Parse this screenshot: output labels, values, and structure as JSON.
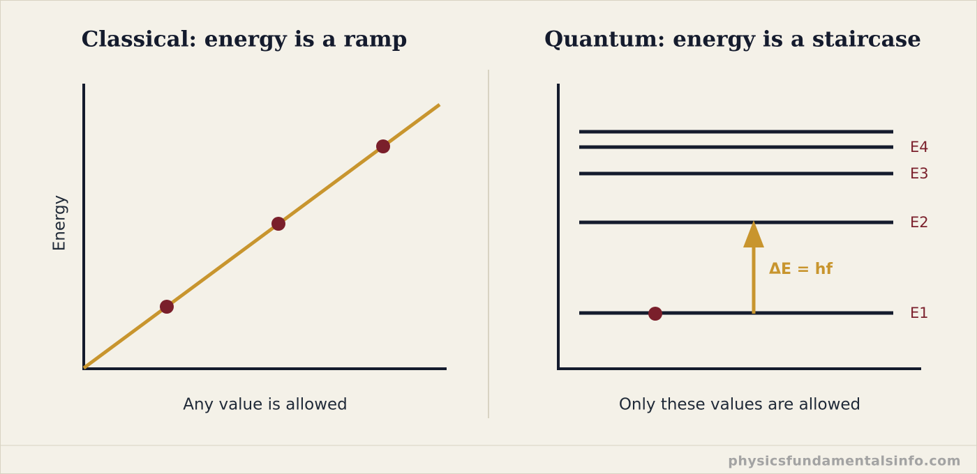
{
  "left_panel": {
    "title": "Classical: energy is a ramp",
    "y_axis_label": "Energy",
    "x_axis_label": "Any value is allowed"
  },
  "right_panel": {
    "title": "Quantum: energy is a staircase",
    "levels": [
      "E1",
      "E2",
      "E3",
      "E4"
    ],
    "transition_label": "ΔE = hf",
    "x_axis_label": "Only these values are allowed"
  },
  "footer": {
    "source": "physicsfundamentalsinfo.com"
  }
}
